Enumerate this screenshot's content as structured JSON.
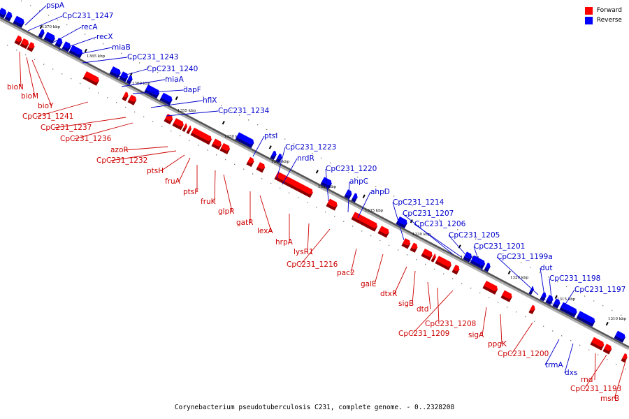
{
  "caption": "Corynebacterium pseudotuberculosis C231, complete genome. - 0..2328208",
  "legend": {
    "forward_label": "Forward",
    "reverse_label": "Reverse",
    "forward_color": "#ff0000",
    "reverse_color": "#0000ff"
  },
  "ticks": [
    "1370 kbp",
    "1365 kbp",
    "1360 kbp",
    "1355 kbp",
    "1350 kbp",
    "1345 kbp",
    "1340 kbp",
    "1335 kbp",
    "1330 kbp",
    "1325 kbp",
    "1320 kbp",
    "1315 kbp",
    "1310 kbp"
  ],
  "reverse_genes": [
    "pspA",
    "CpC231_1247",
    "recA",
    "recX",
    "miaB",
    "CpC231_1243",
    "CpC231_1240",
    "miaA",
    "dapF",
    "hflX",
    "CpC231_1234",
    "ptsI",
    "CpC231_1223",
    "nrdR",
    "CpC231_1220",
    "ahpC",
    "ahpD",
    "CpC231_1214",
    "CpC231_1207",
    "CpC231_1206",
    "CpC231_1205",
    "CpC231_1201",
    "CpC231_1199a",
    "dut",
    "CpC231_1198",
    "CpC231_1197",
    "trmA",
    "dxs"
  ],
  "forward_genes": [
    "bioN",
    "bioM",
    "bioY",
    "CpC231_1241",
    "CpC231_1237",
    "CpC231_1236",
    "azoR",
    "CpC231_1232",
    "ptsH",
    "fruA",
    "ptsF",
    "fruK",
    "glpR",
    "gatR",
    "lexA",
    "hrpA",
    "lysR1",
    "CpC231_1216",
    "pac2",
    "galE",
    "dtxR",
    "sigB",
    "dtd",
    "CpC231_1208",
    "CpC231_1209",
    "sigA",
    "ppgK",
    "CpC231_1200",
    "rnd",
    "CpC231_1193",
    "msrB"
  ]
}
